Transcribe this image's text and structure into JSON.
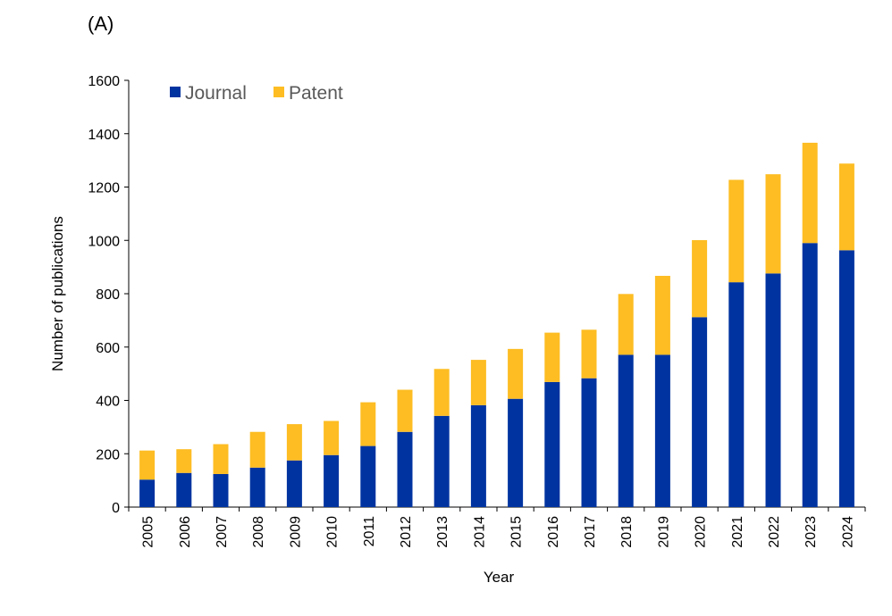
{
  "panel_label": "(A)",
  "chart_data": {
    "type": "bar",
    "stacked": true,
    "categories": [
      "2005",
      "2006",
      "2007",
      "2008",
      "2009",
      "2010",
      "2011",
      "2012",
      "2013",
      "2014",
      "2015",
      "2016",
      "2017",
      "2018",
      "2019",
      "2020",
      "2021",
      "2022",
      "2023",
      "2024"
    ],
    "series": [
      {
        "name": "Journal",
        "color": "#0033a0",
        "values": [
          103,
          128,
          124,
          148,
          175,
          195,
          229,
          282,
          342,
          382,
          406,
          469,
          483,
          571,
          571,
          712,
          843,
          876,
          990,
          963
        ]
      },
      {
        "name": "Patent",
        "color": "#fdbd23",
        "values": [
          109,
          89,
          112,
          134,
          136,
          128,
          164,
          158,
          176,
          170,
          187,
          185,
          182,
          228,
          296,
          289,
          384,
          372,
          376,
          325
        ]
      }
    ],
    "xlabel": "Year",
    "ylabel": "Number of publications",
    "ylim": [
      0,
      1600
    ],
    "yticks": [
      0,
      200,
      400,
      600,
      800,
      1000,
      1200,
      1400,
      1600
    ],
    "legend_position": "top-left",
    "grid": false
  }
}
